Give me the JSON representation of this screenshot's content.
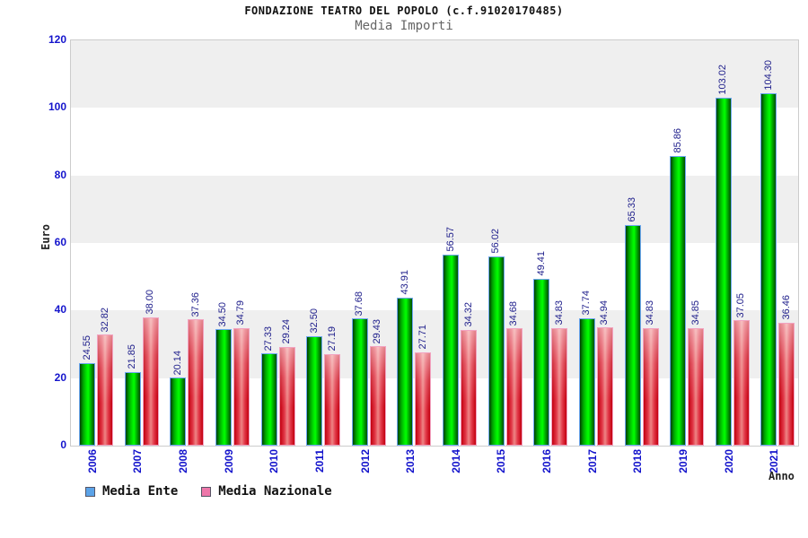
{
  "header": {
    "title": "FONDAZIONE TEATRO DEL POPOLO (c.f.91020170485)",
    "subtitle": "Media Importi"
  },
  "chart_data": {
    "type": "bar",
    "title": "FONDAZIONE TEATRO DEL POPOLO (c.f.91020170485)",
    "subtitle": "Media Importi",
    "categories": [
      "2006",
      "2007",
      "2008",
      "2009",
      "2010",
      "2011",
      "2012",
      "2013",
      "2014",
      "2015",
      "2016",
      "2017",
      "2018",
      "2019",
      "2020",
      "2021"
    ],
    "series": [
      {
        "name": "Media Ente",
        "values": [
          24.55,
          21.85,
          20.14,
          34.5,
          27.33,
          32.5,
          37.68,
          43.91,
          56.57,
          56.02,
          49.41,
          37.74,
          65.33,
          85.86,
          103.02,
          104.3
        ]
      },
      {
        "name": "Media Nazionale",
        "values": [
          32.82,
          38.0,
          37.36,
          34.79,
          29.24,
          27.19,
          29.43,
          27.71,
          34.32,
          34.68,
          34.83,
          34.94,
          34.83,
          34.85,
          37.05,
          36.46
        ]
      }
    ],
    "xlabel": "Anno",
    "ylabel": "Euro",
    "ylim": [
      0,
      120
    ],
    "ytick_step": 20,
    "yticks": [
      0,
      20,
      40,
      60,
      80,
      100,
      120
    ],
    "value_label_decimals": 2,
    "grid_bands": true,
    "legend_position": "bottom-left"
  },
  "colors": {
    "bar_ente_main": "#00e400",
    "bar_ente_border": "#6ea7f2",
    "bar_nazionale_main": "#e23848",
    "bar_nazionale_border": "#f2a2c0",
    "legend_ente_swatch": "#5ba3e8",
    "legend_nazionale_swatch": "#ee77aa",
    "value_label_text": "#20208c",
    "axis_tick_text": "#1414cc",
    "band_gray": "#efefef",
    "plot_border": "#cccccc",
    "subtitle_text": "#666666"
  }
}
